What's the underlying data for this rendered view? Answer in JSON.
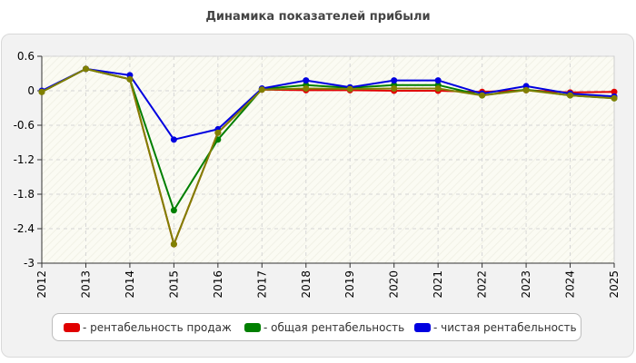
{
  "chart_data": {
    "type": "line",
    "title": "Динамика показателей прибыли",
    "xlabel": "",
    "ylabel": "",
    "x": [
      "2012",
      "2013",
      "2014",
      "2015",
      "2016",
      "2017",
      "2018",
      "2019",
      "2020",
      "2021",
      "2022",
      "2023",
      "2024",
      "2025"
    ],
    "ylim": [
      -3,
      0.6
    ],
    "yticks": [
      "0.6",
      "0",
      "-0.6",
      "-1.2",
      "-1.8",
      "-2.4",
      "-3"
    ],
    "grid": true,
    "legend_position": "bottom",
    "series": [
      {
        "name": "- рентабельность продаж",
        "color": "#e00000",
        "values": [
          -0.02,
          0.38,
          0.2,
          -2.67,
          -0.73,
          0.02,
          0.01,
          0.01,
          0.0,
          0.0,
          -0.02,
          0.01,
          -0.03,
          -0.02
        ]
      },
      {
        "name": "- общая рентабельность",
        "color": "#007f00",
        "values": [
          -0.02,
          0.38,
          0.2,
          -2.08,
          -0.85,
          0.03,
          0.1,
          0.05,
          0.1,
          0.1,
          -0.08,
          0.02,
          -0.08,
          -0.13
        ]
      },
      {
        "name": "- чистая рентабельность",
        "color": "#0000e0",
        "values": [
          0.0,
          0.38,
          0.27,
          -0.85,
          -0.67,
          0.04,
          0.18,
          0.06,
          0.18,
          0.18,
          -0.05,
          0.08,
          -0.05,
          -0.1
        ]
      },
      {
        "name": "",
        "color": "#808000",
        "values": [
          -0.02,
          0.38,
          0.2,
          -2.67,
          -0.73,
          0.02,
          0.04,
          0.03,
          0.04,
          0.04,
          -0.08,
          0.01,
          -0.08,
          -0.13
        ]
      }
    ]
  },
  "legend": {
    "items": [
      {
        "label": "- рентабельность продаж",
        "color": "#e00000"
      },
      {
        "label": "- общая рентабельность",
        "color": "#007f00"
      },
      {
        "label": "- чистая рентабельность",
        "color": "#0000e0"
      }
    ]
  }
}
